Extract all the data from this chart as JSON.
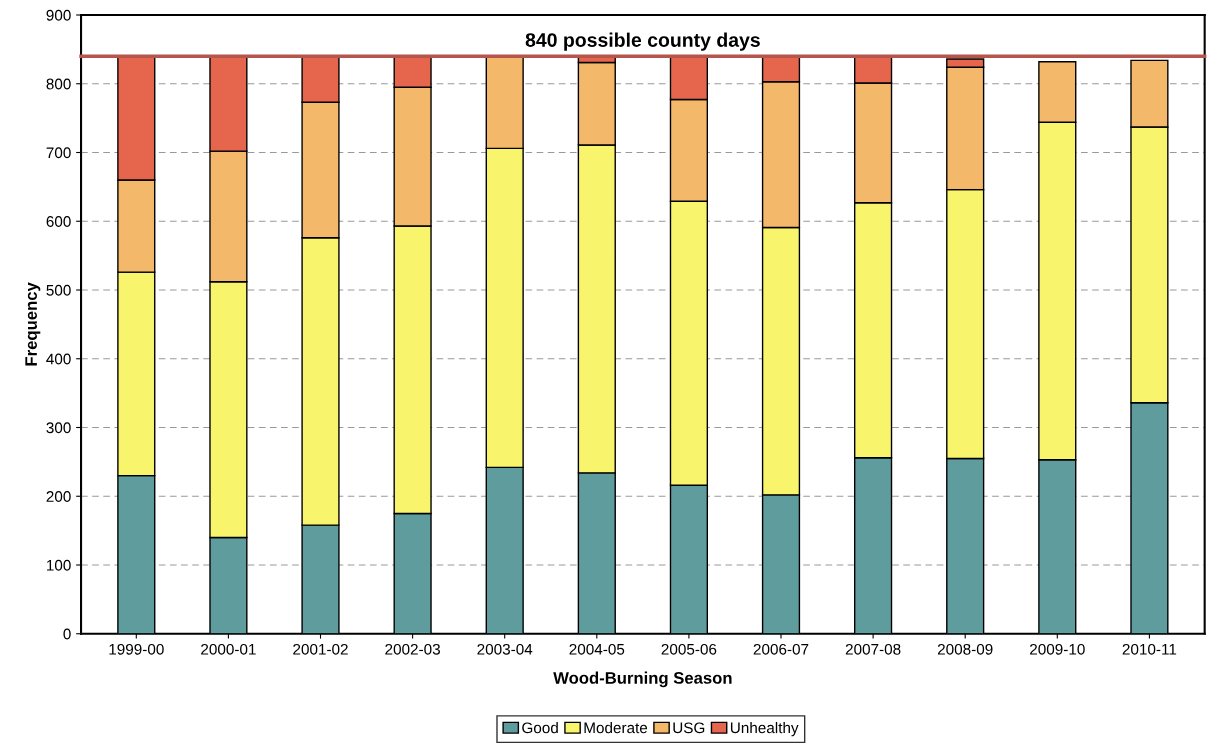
{
  "chart_data": {
    "type": "bar",
    "stacked": true,
    "xlabel": "Wood-Burning Season",
    "ylabel": "Frequency",
    "categories": [
      "1999-00",
      "2000-01",
      "2001-02",
      "2002-03",
      "2003-04",
      "2004-05",
      "2005-06",
      "2006-07",
      "2007-08",
      "2008-09",
      "2009-10",
      "2010-11"
    ],
    "series": [
      {
        "name": "Good",
        "color": "#5f9c9e",
        "values": [
          230,
          140,
          158,
          175,
          242,
          234,
          216,
          202,
          256,
          255,
          253,
          336
        ]
      },
      {
        "name": "Moderate",
        "color": "#f8f46c",
        "values": [
          296,
          372,
          418,
          418,
          464,
          477,
          413,
          389,
          371,
          391,
          491,
          401
        ]
      },
      {
        "name": "USG",
        "color": "#f4b86a",
        "values": [
          134,
          190,
          197,
          202,
          134,
          120,
          148,
          212,
          174,
          178,
          88,
          97
        ]
      },
      {
        "name": "Unhealthy",
        "color": "#e5664c",
        "values": [
          180,
          138,
          67,
          45,
          0,
          9,
          63,
          37,
          39,
          12,
          0,
          0
        ]
      }
    ],
    "ylim": [
      0,
      900
    ],
    "yticks": [
      0,
      100,
      200,
      300,
      400,
      500,
      600,
      700,
      800,
      900
    ],
    "ref_lines": [
      {
        "axis": "y",
        "value": 840,
        "label": "840 possible county days",
        "color": "#b5554c"
      }
    ],
    "grid": "y",
    "legend": "bottom"
  }
}
